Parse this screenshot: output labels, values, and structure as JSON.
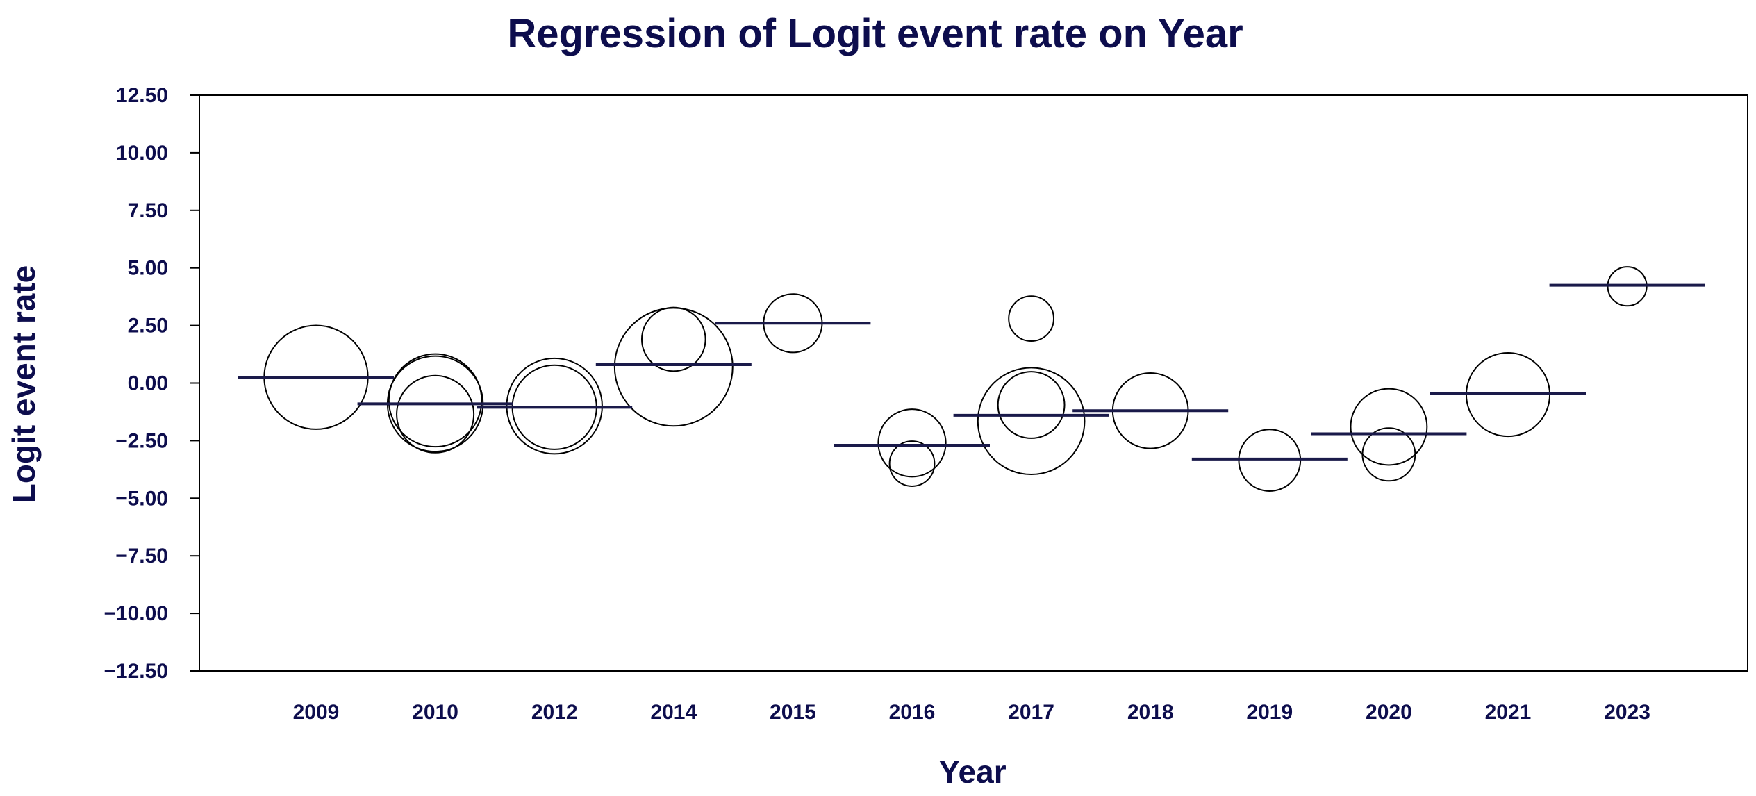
{
  "colors": {
    "text": "#0d0d4d",
    "axis": "#000000",
    "regression_line": "#1a1a4a",
    "bubble": "#000000",
    "background": "#ffffff"
  },
  "chart_data": {
    "type": "scatter",
    "title": "Regression of Logit event rate on Year",
    "xlabel": "Year",
    "ylabel": "Logit event rate",
    "categories": [
      "2009",
      "2010",
      "2012",
      "2014",
      "2015",
      "2016",
      "2017",
      "2018",
      "2019",
      "2020",
      "2021",
      "2023"
    ],
    "ylim": [
      -12.5,
      12.5
    ],
    "yticks": [
      12.5,
      10.0,
      7.5,
      5.0,
      2.5,
      0.0,
      -2.5,
      -5.0,
      -7.5,
      -10.0,
      -12.5
    ],
    "ytick_labels": [
      "12.50",
      "10.00",
      "7.50",
      "5.00",
      "2.50",
      "0.00",
      "−2.50",
      "−5.00",
      "−7.50",
      "−10.00",
      "−12.50"
    ],
    "grid": false,
    "points": [
      {
        "category": "2009",
        "y": 0.25,
        "weight": 85
      },
      {
        "category": "2010",
        "y": -0.9,
        "weight": 72
      },
      {
        "category": "2010",
        "y": -0.75,
        "weight": 68
      },
      {
        "category": "2010",
        "y": -1.35,
        "weight": 47
      },
      {
        "category": "2012",
        "y": -1.0,
        "weight": 72
      },
      {
        "category": "2012",
        "y": -1.05,
        "weight": 56
      },
      {
        "category": "2014",
        "y": 0.7,
        "weight": 110
      },
      {
        "category": "2014",
        "y": 1.9,
        "weight": 32
      },
      {
        "category": "2015",
        "y": 2.6,
        "weight": 27
      },
      {
        "category": "2016",
        "y": -2.6,
        "weight": 36
      },
      {
        "category": "2016",
        "y": -3.5,
        "weight": 16
      },
      {
        "category": "2017",
        "y": 2.8,
        "weight": 16
      },
      {
        "category": "2017",
        "y": -1.65,
        "weight": 90
      },
      {
        "category": "2017",
        "y": -0.95,
        "weight": 35
      },
      {
        "category": "2018",
        "y": -1.2,
        "weight": 45
      },
      {
        "category": "2019",
        "y": -3.35,
        "weight": 30
      },
      {
        "category": "2020",
        "y": -1.9,
        "weight": 46
      },
      {
        "category": "2020",
        "y": -3.1,
        "weight": 22
      },
      {
        "category": "2021",
        "y": -0.5,
        "weight": 55
      },
      {
        "category": "2023",
        "y": 4.2,
        "weight": 12
      }
    ],
    "regression": [
      {
        "category": "2009",
        "y": 0.25
      },
      {
        "category": "2010",
        "y": -0.9
      },
      {
        "category": "2012",
        "y": -1.05
      },
      {
        "category": "2014",
        "y": 0.8
      },
      {
        "category": "2015",
        "y": 2.6
      },
      {
        "category": "2016",
        "y": -2.7
      },
      {
        "category": "2017",
        "y": -1.4
      },
      {
        "category": "2018",
        "y": -1.2
      },
      {
        "category": "2019",
        "y": -3.3
      },
      {
        "category": "2020",
        "y": -2.2
      },
      {
        "category": "2021",
        "y": -0.45
      },
      {
        "category": "2023",
        "y": 4.25
      }
    ]
  }
}
